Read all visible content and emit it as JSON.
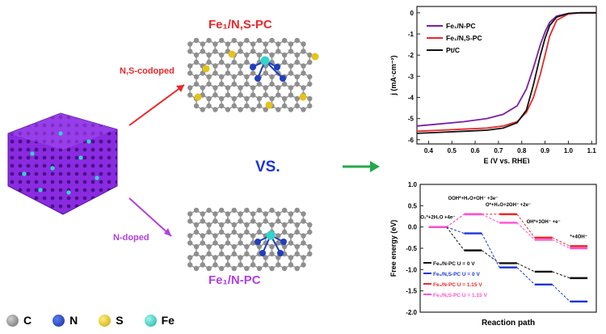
{
  "labels": {
    "fe1_ns_pc": "Fe₁/N,S-PC",
    "fe1_n_pc": "Fe₁/N-PC",
    "ns_codoped": "N,S-codoped",
    "n_doped": "N-doped",
    "vs": "VS."
  },
  "legend": {
    "items": [
      {
        "symbol": "C",
        "color": "#8a8a8a"
      },
      {
        "symbol": "N",
        "color": "#1f3fbf"
      },
      {
        "symbol": "S",
        "color": "#e6c21a"
      },
      {
        "symbol": "Fe",
        "color": "#2fd6c9"
      }
    ]
  },
  "colors": {
    "purple_framework": "#8a2be2",
    "arrow_red": "#e8282b",
    "arrow_purple": "#b040e0",
    "arrow_green": "#23a94a",
    "vs_blue": "#1c35d6"
  },
  "chart_data": [
    {
      "type": "line",
      "title": "",
      "xlabel": "E (V vs. RHE)",
      "ylabel": "j (mA·cm⁻²)",
      "xlim": [
        0.35,
        1.12
      ],
      "ylim": [
        -6.2,
        0.3
      ],
      "xticks": [
        "0.4",
        "0.5",
        "0.6",
        "0.7",
        "0.8",
        "0.9",
        "1.0",
        "1.1"
      ],
      "yticks": [
        "0",
        "-1",
        "-2",
        "-3",
        "-4",
        "-5",
        "-6"
      ],
      "legend_position": "top-left",
      "series": [
        {
          "name": "Fe₁/N-PC",
          "color": "#7a1fa8",
          "x": [
            0.35,
            0.45,
            0.55,
            0.65,
            0.72,
            0.78,
            0.82,
            0.85,
            0.88,
            0.9,
            0.92,
            0.95,
            1.0,
            1.05,
            1.12
          ],
          "y": [
            -5.35,
            -5.25,
            -5.15,
            -5.0,
            -4.8,
            -4.4,
            -3.6,
            -2.6,
            -1.5,
            -0.9,
            -0.45,
            -0.15,
            -0.03,
            0.0,
            0.0
          ]
        },
        {
          "name": "Fe₁/N,S-PC",
          "color": "#e8282b",
          "x": [
            0.35,
            0.45,
            0.55,
            0.65,
            0.72,
            0.78,
            0.82,
            0.85,
            0.88,
            0.9,
            0.92,
            0.95,
            1.0,
            1.05,
            1.12
          ],
          "y": [
            -5.6,
            -5.55,
            -5.5,
            -5.45,
            -5.35,
            -5.15,
            -4.7,
            -4.0,
            -2.9,
            -2.0,
            -1.1,
            -0.35,
            -0.05,
            0.0,
            0.0
          ]
        },
        {
          "name": "Pt/C",
          "color": "#111111",
          "x": [
            0.35,
            0.45,
            0.55,
            0.65,
            0.72,
            0.78,
            0.82,
            0.85,
            0.88,
            0.9,
            0.92,
            0.95,
            1.0,
            1.05,
            1.12
          ],
          "y": [
            -5.7,
            -5.65,
            -5.6,
            -5.55,
            -5.45,
            -5.2,
            -4.6,
            -3.4,
            -2.0,
            -1.2,
            -0.6,
            -0.2,
            -0.03,
            0.0,
            0.0
          ]
        }
      ]
    },
    {
      "type": "line",
      "title": "",
      "xlabel": "Reaction path",
      "ylabel": "Free energy (eV)",
      "ylim": [
        -2.0,
        1.0
      ],
      "yticks": [
        "1.0",
        "0.5",
        "0.0",
        "-0.5",
        "-1.0",
        "-1.5",
        "-2.0"
      ],
      "step_labels": [
        "O₂*+2H₂O +4e⁻",
        "OOH*+H₂O+OH⁻ +3e⁻",
        "O*+H₂O+2OH⁻ +2e⁻",
        "OH*+3OH⁻ +e⁻",
        "*+4OH⁻"
      ],
      "series": [
        {
          "name": "Fe₁/N-PC U = 0 V",
          "color": "#111111",
          "values": [
            0.0,
            -0.55,
            -0.85,
            -1.05,
            -1.2
          ]
        },
        {
          "name": "Fe₁/N,S-PC U = 0 V",
          "color": "#1c35d6",
          "values": [
            0.0,
            -0.15,
            -0.95,
            -1.35,
            -1.75
          ]
        },
        {
          "name": "Fe₁/N-PC U = 1.15 V",
          "color": "#e8282b",
          "values": [
            0.0,
            0.3,
            0.3,
            -0.25,
            -0.45
          ]
        },
        {
          "name": "Fe₁/N,S-PC U = 1.15 V",
          "color": "#ff4fd2",
          "values": [
            0.0,
            0.3,
            0.1,
            -0.3,
            -0.5
          ]
        }
      ],
      "legend_labels": [
        "Fe₁/N-PC U = 0 V",
        "Fe₁/N,S-PC U = 0 V",
        "Fe₁/N-PC U = 1.15 V",
        "Fe₁/N,S-PC U = 1.15 V"
      ]
    }
  ]
}
